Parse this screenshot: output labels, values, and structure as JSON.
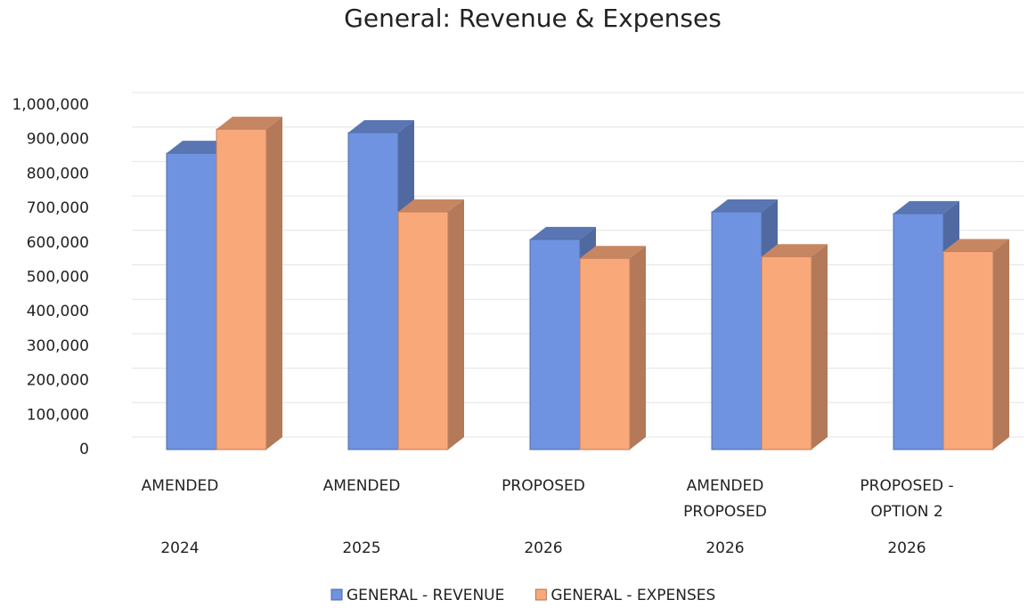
{
  "chart_data": {
    "type": "bar3d",
    "title": "General: Revenue & Expenses",
    "categories": [
      "AMENDED",
      "AMENDED",
      "PROPOSED",
      "AMENDED PROPOSED",
      "PROPOSED - OPTION 2"
    ],
    "years": [
      "2024",
      "2025",
      "2026",
      "2026",
      "2026"
    ],
    "series": [
      {
        "name": "GENERAL - REVENUE",
        "color": "#6f93e0",
        "values": [
          860000,
          920000,
          610000,
          690000,
          685000
        ]
      },
      {
        "name": "GENERAL - EXPENSES",
        "color": "#f9a87a",
        "values": [
          930000,
          690000,
          555000,
          560000,
          575000
        ]
      }
    ],
    "ylim": [
      0,
      1000000
    ],
    "yticks": [
      0,
      {
        "value": 100000,
        "label": "100,000"
      },
      {
        "value": 200000,
        "label": "200,000"
      },
      {
        "value": 300000,
        "label": "300,000"
      },
      {
        "value": 400000,
        "label": "400,000"
      },
      {
        "value": 500000,
        "label": "500,000"
      },
      {
        "value": 600000,
        "label": "600,000"
      },
      {
        "value": 700000,
        "label": "700,000"
      },
      {
        "value": 800000,
        "label": "800,000"
      },
      {
        "value": 900000,
        "label": "900,000"
      },
      {
        "value": 1000000,
        "label": "1,000,000"
      }
    ],
    "grid": true
  }
}
